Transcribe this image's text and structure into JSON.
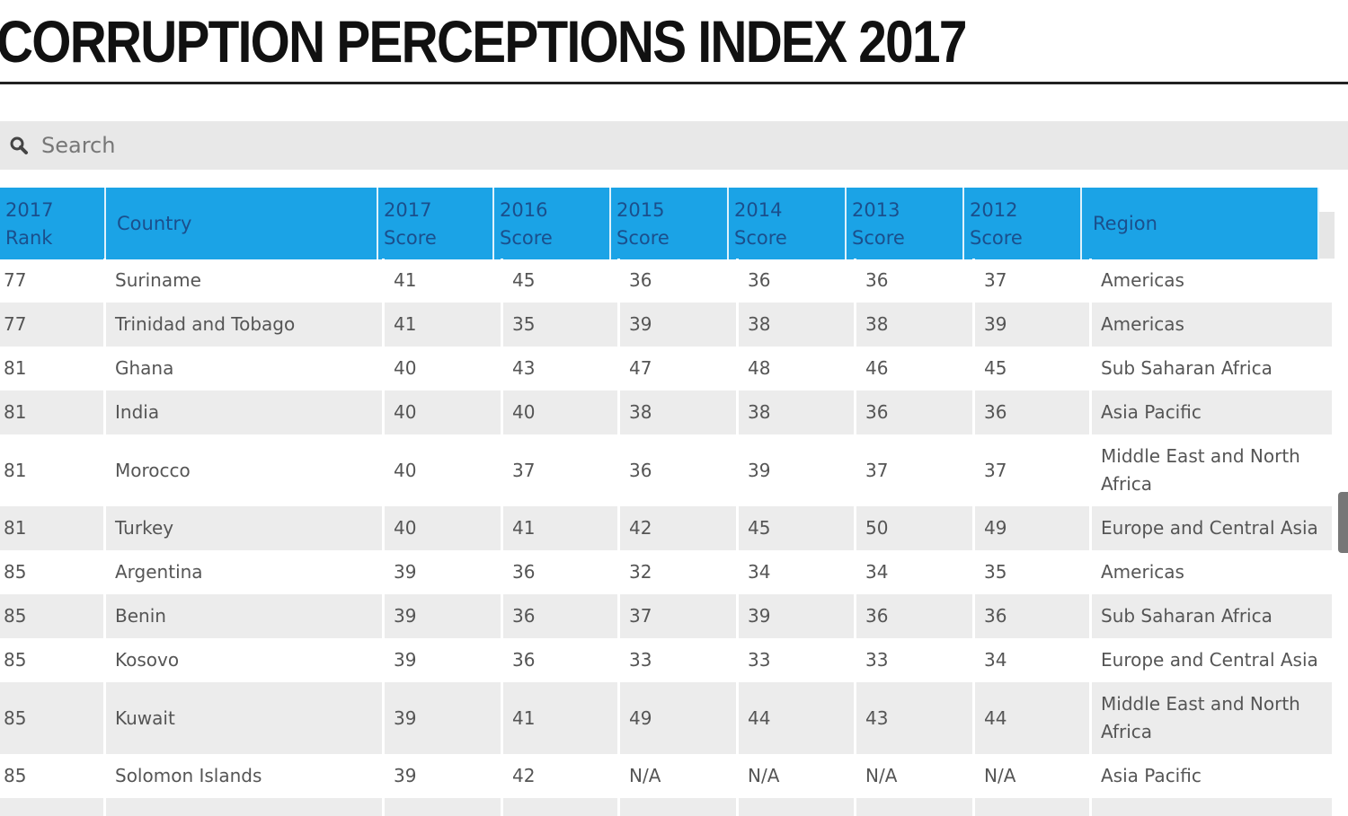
{
  "title": "CORRUPTION PERCEPTIONS INDEX 2017",
  "search": {
    "placeholder": "Search",
    "icon": "search-icon"
  },
  "colors": {
    "header_bg": "#1ba3e6",
    "header_text": "#1b4f8c",
    "row_alt": "#ececec"
  },
  "table": {
    "headers": [
      "2017 Rank",
      "Country",
      "2017 Score",
      "2016 Score",
      "2015 Score",
      "2014 Score",
      "2013 Score",
      "2012 Score",
      "Region"
    ],
    "rows": [
      [
        "77",
        "Suriname",
        "41",
        "45",
        "36",
        "36",
        "36",
        "37",
        "Americas"
      ],
      [
        "77",
        "Trinidad and Tobago",
        "41",
        "35",
        "39",
        "38",
        "38",
        "39",
        "Americas"
      ],
      [
        "81",
        "Ghana",
        "40",
        "43",
        "47",
        "48",
        "46",
        "45",
        "Sub Saharan Africa"
      ],
      [
        "81",
        "India",
        "40",
        "40",
        "38",
        "38",
        "36",
        "36",
        "Asia Pacific"
      ],
      [
        "81",
        "Morocco",
        "40",
        "37",
        "36",
        "39",
        "37",
        "37",
        "Middle East and North Africa"
      ],
      [
        "81",
        "Turkey",
        "40",
        "41",
        "42",
        "45",
        "50",
        "49",
        "Europe and Central Asia"
      ],
      [
        "85",
        "Argentina",
        "39",
        "36",
        "32",
        "34",
        "34",
        "35",
        "Americas"
      ],
      [
        "85",
        "Benin",
        "39",
        "36",
        "37",
        "39",
        "36",
        "36",
        "Sub Saharan Africa"
      ],
      [
        "85",
        "Kosovo",
        "39",
        "36",
        "33",
        "33",
        "33",
        "34",
        "Europe and Central Asia"
      ],
      [
        "85",
        "Kuwait",
        "39",
        "41",
        "49",
        "44",
        "43",
        "44",
        "Middle East and North Africa"
      ],
      [
        "85",
        "Solomon Islands",
        "39",
        "42",
        "N/A",
        "N/A",
        "N/A",
        "N/A",
        "Asia Pacific"
      ]
    ]
  }
}
